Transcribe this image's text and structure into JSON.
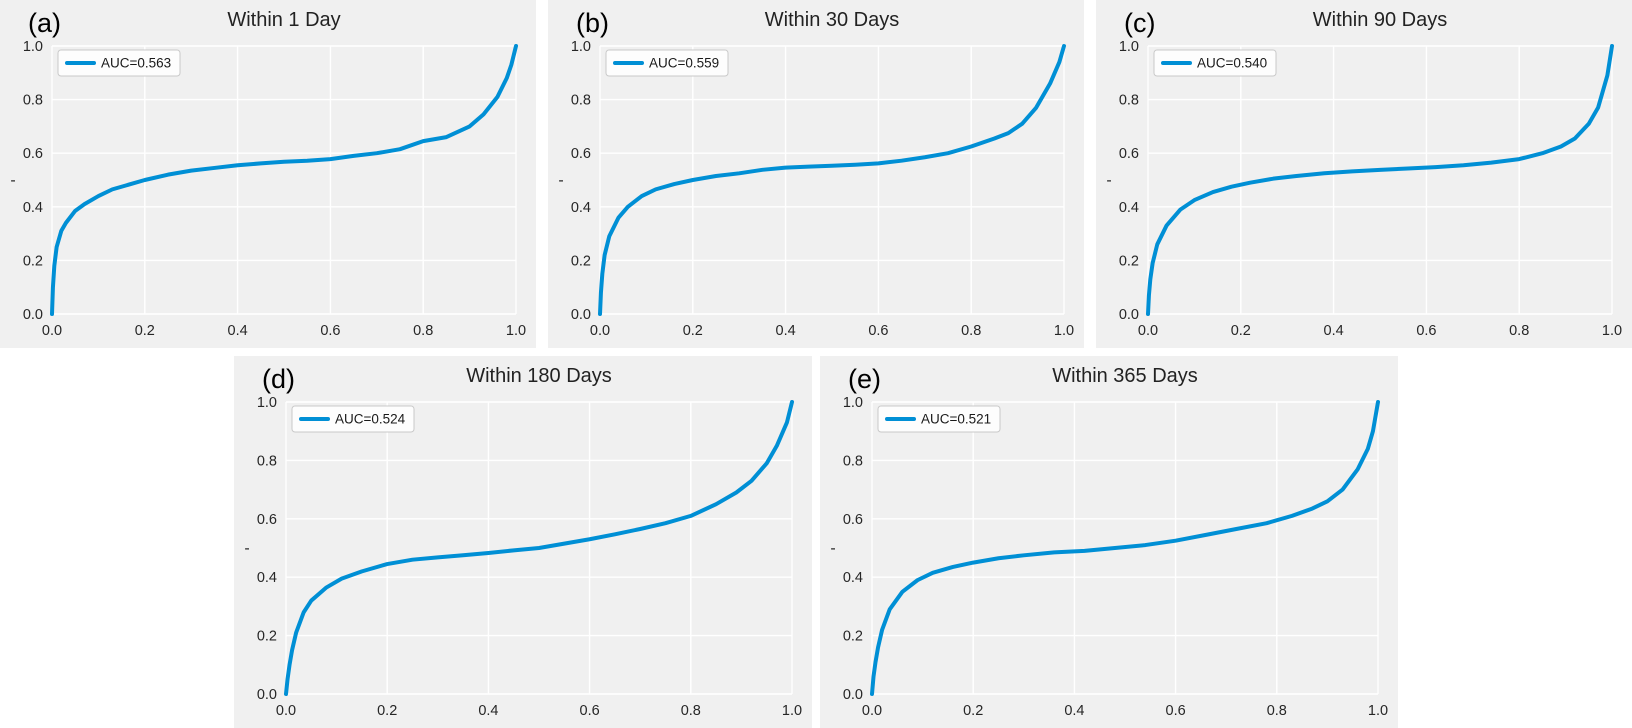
{
  "figure": {
    "background": "#ffffff",
    "panel_background": "#f0f0f0",
    "grid_color": "#ffffff",
    "line_color": "#008fd5",
    "text_color": "#262626",
    "legend_border": "#c9c9c9",
    "legend_background": "#fdfdfd"
  },
  "chart_data": [
    {
      "type": "line",
      "panel_label": "(a)",
      "title": "Within 1 Day",
      "legend": "AUC=0.563",
      "auc": 0.563,
      "xlabel": "",
      "ylabel": "-",
      "xlim": [
        0.0,
        1.0
      ],
      "ylim": [
        0.0,
        1.0
      ],
      "xticks": [
        0.0,
        0.2,
        0.4,
        0.6,
        0.8,
        1.0
      ],
      "yticks": [
        0.0,
        0.2,
        0.4,
        0.6,
        0.8,
        1.0
      ],
      "grid": true,
      "legend_position": "upper left",
      "x": [
        0,
        0.002,
        0.005,
        0.01,
        0.02,
        0.03,
        0.05,
        0.07,
        0.1,
        0.13,
        0.16,
        0.2,
        0.25,
        0.3,
        0.35,
        0.4,
        0.45,
        0.5,
        0.55,
        0.6,
        0.65,
        0.7,
        0.75,
        0.8,
        0.85,
        0.9,
        0.93,
        0.96,
        0.98,
        0.99,
        1.0
      ],
      "y": [
        0,
        0.1,
        0.18,
        0.25,
        0.31,
        0.34,
        0.385,
        0.41,
        0.44,
        0.465,
        0.48,
        0.5,
        0.52,
        0.535,
        0.545,
        0.555,
        0.562,
        0.568,
        0.572,
        0.578,
        0.59,
        0.6,
        0.615,
        0.645,
        0.66,
        0.7,
        0.745,
        0.81,
        0.88,
        0.93,
        1.0
      ]
    },
    {
      "type": "line",
      "panel_label": "(b)",
      "title": "Within 30 Days",
      "legend": "AUC=0.559",
      "auc": 0.559,
      "xlabel": "",
      "ylabel": "-",
      "xlim": [
        0.0,
        1.0
      ],
      "ylim": [
        0.0,
        1.0
      ],
      "xticks": [
        0.0,
        0.2,
        0.4,
        0.6,
        0.8,
        1.0
      ],
      "yticks": [
        0.0,
        0.2,
        0.4,
        0.6,
        0.8,
        1.0
      ],
      "grid": true,
      "legend_position": "upper left",
      "x": [
        0,
        0.002,
        0.005,
        0.01,
        0.02,
        0.04,
        0.06,
        0.09,
        0.12,
        0.16,
        0.2,
        0.25,
        0.3,
        0.35,
        0.4,
        0.45,
        0.5,
        0.55,
        0.6,
        0.65,
        0.7,
        0.75,
        0.8,
        0.85,
        0.88,
        0.91,
        0.94,
        0.97,
        0.99,
        1.0
      ],
      "y": [
        0,
        0.08,
        0.15,
        0.22,
        0.29,
        0.36,
        0.4,
        0.44,
        0.465,
        0.485,
        0.5,
        0.515,
        0.525,
        0.538,
        0.546,
        0.55,
        0.553,
        0.557,
        0.562,
        0.572,
        0.585,
        0.6,
        0.625,
        0.655,
        0.675,
        0.71,
        0.77,
        0.86,
        0.94,
        1.0
      ]
    },
    {
      "type": "line",
      "panel_label": "(c)",
      "title": "Within 90 Days",
      "legend": "AUC=0.540",
      "auc": 0.54,
      "xlabel": "",
      "ylabel": "-",
      "xlim": [
        0.0,
        1.0
      ],
      "ylim": [
        0.0,
        1.0
      ],
      "xticks": [
        0.0,
        0.2,
        0.4,
        0.6,
        0.8,
        1.0
      ],
      "yticks": [
        0.0,
        0.2,
        0.4,
        0.6,
        0.8,
        1.0
      ],
      "grid": true,
      "legend_position": "upper left",
      "x": [
        0,
        0.002,
        0.005,
        0.01,
        0.02,
        0.04,
        0.07,
        0.1,
        0.14,
        0.18,
        0.22,
        0.27,
        0.32,
        0.38,
        0.44,
        0.5,
        0.56,
        0.62,
        0.68,
        0.74,
        0.8,
        0.85,
        0.89,
        0.92,
        0.95,
        0.97,
        0.99,
        1.0
      ],
      "y": [
        0,
        0.07,
        0.13,
        0.19,
        0.26,
        0.33,
        0.39,
        0.425,
        0.455,
        0.475,
        0.49,
        0.505,
        0.515,
        0.525,
        0.532,
        0.538,
        0.543,
        0.548,
        0.555,
        0.565,
        0.578,
        0.6,
        0.625,
        0.655,
        0.71,
        0.77,
        0.89,
        1.0
      ]
    },
    {
      "type": "line",
      "panel_label": "(d)",
      "title": "Within 180 Days",
      "legend": "AUC=0.524",
      "auc": 0.524,
      "xlabel": "",
      "ylabel": "-",
      "xlim": [
        0.0,
        1.0
      ],
      "ylim": [
        0.0,
        1.0
      ],
      "xticks": [
        0.0,
        0.2,
        0.4,
        0.6,
        0.8,
        1.0
      ],
      "yticks": [
        0.0,
        0.2,
        0.4,
        0.6,
        0.8,
        1.0
      ],
      "grid": true,
      "legend_position": "upper left",
      "x": [
        0,
        0.003,
        0.007,
        0.012,
        0.02,
        0.035,
        0.05,
        0.08,
        0.11,
        0.15,
        0.2,
        0.25,
        0.3,
        0.35,
        0.4,
        0.45,
        0.5,
        0.55,
        0.6,
        0.65,
        0.7,
        0.75,
        0.8,
        0.85,
        0.89,
        0.92,
        0.95,
        0.97,
        0.99,
        1.0
      ],
      "y": [
        0,
        0.05,
        0.1,
        0.15,
        0.21,
        0.28,
        0.32,
        0.365,
        0.395,
        0.42,
        0.445,
        0.46,
        0.468,
        0.475,
        0.483,
        0.492,
        0.5,
        0.515,
        0.53,
        0.547,
        0.565,
        0.585,
        0.61,
        0.65,
        0.69,
        0.73,
        0.79,
        0.85,
        0.93,
        1.0
      ]
    },
    {
      "type": "line",
      "panel_label": "(e)",
      "title": "Within 365 Days",
      "legend": "AUC=0.521",
      "auc": 0.521,
      "xlabel": "",
      "ylabel": "-",
      "xlim": [
        0.0,
        1.0
      ],
      "ylim": [
        0.0,
        1.0
      ],
      "xticks": [
        0.0,
        0.2,
        0.4,
        0.6,
        0.8,
        1.0
      ],
      "yticks": [
        0.0,
        0.2,
        0.4,
        0.6,
        0.8,
        1.0
      ],
      "grid": true,
      "legend_position": "upper left",
      "x": [
        0,
        0.003,
        0.007,
        0.012,
        0.02,
        0.035,
        0.06,
        0.09,
        0.12,
        0.16,
        0.2,
        0.25,
        0.3,
        0.36,
        0.42,
        0.48,
        0.54,
        0.6,
        0.66,
        0.72,
        0.78,
        0.83,
        0.87,
        0.9,
        0.93,
        0.96,
        0.98,
        0.99,
        1.0
      ],
      "y": [
        0,
        0.06,
        0.11,
        0.16,
        0.22,
        0.29,
        0.35,
        0.39,
        0.415,
        0.435,
        0.45,
        0.465,
        0.475,
        0.485,
        0.49,
        0.5,
        0.51,
        0.525,
        0.545,
        0.565,
        0.585,
        0.61,
        0.635,
        0.66,
        0.7,
        0.77,
        0.84,
        0.9,
        1.0
      ]
    }
  ]
}
